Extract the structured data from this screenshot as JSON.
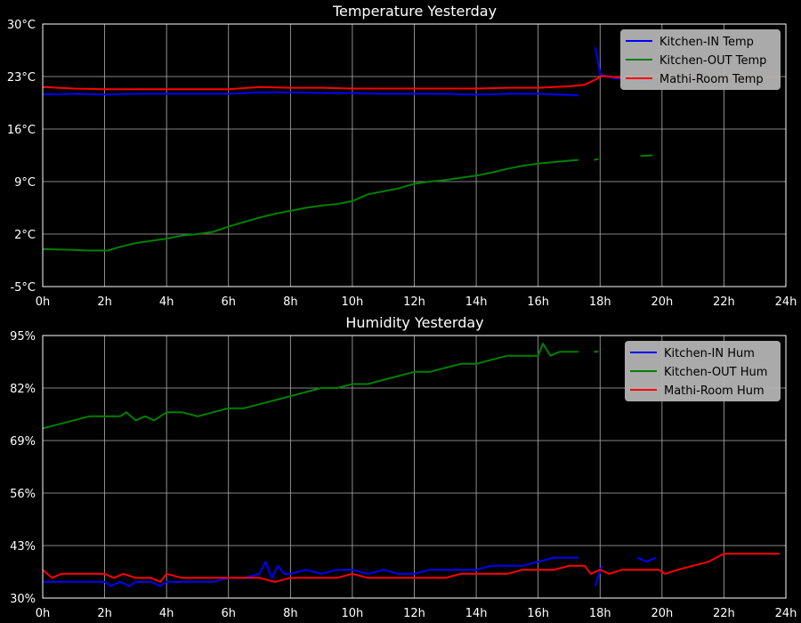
{
  "chart_data": [
    {
      "type": "line",
      "title": "Temperature Yesterday",
      "xlabel": "",
      "ylabel": "",
      "xlim": [
        0,
        24
      ],
      "ylim": [
        -5,
        30
      ],
      "x_ticks": [
        "0h",
        "2h",
        "4h",
        "6h",
        "8h",
        "10h",
        "12h",
        "14h",
        "16h",
        "18h",
        "20h",
        "22h",
        "24h"
      ],
      "y_ticks": [
        "-5°C",
        "2°C",
        "9°C",
        "16°C",
        "23°C",
        "30°C"
      ],
      "grid": true,
      "legend_position": "top-right",
      "series": [
        {
          "name": "Kitchen-IN Temp",
          "color": "#0000ff",
          "segments": [
            [
              [
                0,
                20.6
              ],
              [
                1,
                20.7
              ],
              [
                2,
                20.6
              ],
              [
                3,
                20.7
              ],
              [
                4,
                20.7
              ],
              [
                5,
                20.7
              ],
              [
                6,
                20.7
              ],
              [
                7,
                20.9
              ],
              [
                8,
                20.9
              ],
              [
                9,
                20.8
              ],
              [
                10,
                20.8
              ],
              [
                11,
                20.7
              ],
              [
                12,
                20.7
              ],
              [
                13,
                20.7
              ],
              [
                14,
                20.6
              ],
              [
                15,
                20.7
              ],
              [
                16,
                20.7
              ],
              [
                17.3,
                20.5
              ]
            ],
            [
              [
                17.85,
                26.9
              ],
              [
                18.0,
                23.3
              ],
              [
                18.4,
                22.8
              ],
              [
                19.0,
                22.7
              ],
              [
                19.5,
                22.5
              ]
            ]
          ]
        },
        {
          "name": "Kitchen-OUT Temp",
          "color": "#008000",
          "segments": [
            [
              [
                0,
                0.0
              ],
              [
                1,
                -0.1
              ],
              [
                1.5,
                -0.2
              ],
              [
                2.1,
                -0.2
              ],
              [
                2.5,
                0.3
              ],
              [
                3,
                0.8
              ],
              [
                3.5,
                1.1
              ],
              [
                4,
                1.4
              ],
              [
                4.5,
                1.8
              ],
              [
                5,
                2.0
              ],
              [
                5.5,
                2.3
              ],
              [
                6,
                3.0
              ],
              [
                6.5,
                3.6
              ],
              [
                7,
                4.2
              ],
              [
                7.5,
                4.7
              ],
              [
                8,
                5.1
              ],
              [
                8.5,
                5.5
              ],
              [
                9,
                5.8
              ],
              [
                9.5,
                6.0
              ],
              [
                10,
                6.4
              ],
              [
                10.5,
                7.3
              ],
              [
                11,
                7.7
              ],
              [
                11.5,
                8.1
              ],
              [
                12,
                8.7
              ],
              [
                12.5,
                9.0
              ],
              [
                13,
                9.2
              ],
              [
                13.5,
                9.5
              ],
              [
                14,
                9.8
              ],
              [
                14.5,
                10.2
              ],
              [
                15,
                10.7
              ],
              [
                15.5,
                11.1
              ],
              [
                16,
                11.4
              ],
              [
                16.5,
                11.6
              ],
              [
                17.3,
                11.9
              ]
            ],
            [
              [
                17.8,
                11.9
              ],
              [
                17.95,
                12.0
              ]
            ],
            [
              [
                19.3,
                12.4
              ],
              [
                19.7,
                12.5
              ]
            ]
          ]
        },
        {
          "name": "Mathi-Room Temp",
          "color": "#ff0000",
          "segments": [
            [
              [
                0,
                21.6
              ],
              [
                1,
                21.4
              ],
              [
                2,
                21.3
              ],
              [
                3,
                21.3
              ],
              [
                4,
                21.3
              ],
              [
                5,
                21.3
              ],
              [
                6,
                21.3
              ],
              [
                7,
                21.6
              ],
              [
                8,
                21.5
              ],
              [
                9,
                21.5
              ],
              [
                10,
                21.4
              ],
              [
                11,
                21.4
              ],
              [
                12,
                21.4
              ],
              [
                13,
                21.4
              ],
              [
                14,
                21.4
              ],
              [
                15,
                21.5
              ],
              [
                16,
                21.5
              ],
              [
                17,
                21.7
              ],
              [
                17.5,
                21.9
              ],
              [
                17.8,
                22.5
              ],
              [
                18.1,
                23.1
              ],
              [
                18.5,
                22.9
              ],
              [
                19,
                22.8
              ],
              [
                19.5,
                23.0
              ],
              [
                20,
                23.2
              ],
              [
                20.5,
                23.1
              ],
              [
                21,
                23.0
              ],
              [
                22,
                22.9
              ],
              [
                23,
                22.9
              ],
              [
                23.8,
                22.9
              ]
            ]
          ]
        }
      ]
    },
    {
      "type": "line",
      "title": "Humidity Yesterday",
      "xlabel": "",
      "ylabel": "",
      "xlim": [
        0,
        24
      ],
      "ylim": [
        30,
        95
      ],
      "x_ticks": [
        "0h",
        "2h",
        "4h",
        "6h",
        "8h",
        "10h",
        "12h",
        "14h",
        "16h",
        "18h",
        "20h",
        "22h",
        "24h"
      ],
      "y_ticks": [
        "30%",
        "43%",
        "56%",
        "69%",
        "82%",
        "95%"
      ],
      "grid": true,
      "legend_position": "top-right",
      "series": [
        {
          "name": "Kitchen-IN Hum",
          "color": "#0000ff",
          "segments": [
            [
              [
                0,
                34
              ],
              [
                1,
                34
              ],
              [
                2,
                34
              ],
              [
                2.2,
                33
              ],
              [
                2.5,
                34
              ],
              [
                2.8,
                33
              ],
              [
                3,
                34
              ],
              [
                3.5,
                34
              ],
              [
                3.8,
                33
              ],
              [
                4,
                34
              ],
              [
                4.5,
                34
              ],
              [
                5,
                34
              ],
              [
                5.5,
                34
              ],
              [
                6,
                35
              ],
              [
                6.5,
                35
              ],
              [
                7,
                36
              ],
              [
                7.2,
                39
              ],
              [
                7.4,
                35
              ],
              [
                7.6,
                38
              ],
              [
                7.8,
                36
              ],
              [
                8,
                36
              ],
              [
                8.5,
                37
              ],
              [
                9,
                36
              ],
              [
                9.5,
                37
              ],
              [
                10,
                37
              ],
              [
                10.5,
                36
              ],
              [
                11,
                37
              ],
              [
                11.5,
                36
              ],
              [
                12,
                36
              ],
              [
                12.5,
                37
              ],
              [
                13,
                37
              ],
              [
                13.5,
                37
              ],
              [
                14,
                37
              ],
              [
                14.5,
                38
              ],
              [
                15,
                38
              ],
              [
                15.5,
                38
              ],
              [
                16,
                39
              ],
              [
                16.5,
                40
              ],
              [
                17,
                40
              ],
              [
                17.3,
                40
              ]
            ],
            [
              [
                17.85,
                33
              ],
              [
                18.05,
                38
              ]
            ],
            [
              [
                19.2,
                40
              ],
              [
                19.5,
                39
              ],
              [
                19.8,
                40
              ]
            ]
          ]
        },
        {
          "name": "Kitchen-OUT Hum",
          "color": "#008000",
          "segments": [
            [
              [
                0,
                72
              ],
              [
                0.5,
                73
              ],
              [
                1,
                74
              ],
              [
                1.5,
                75
              ],
              [
                2,
                75
              ],
              [
                2.5,
                75
              ],
              [
                2.7,
                76
              ],
              [
                3,
                74
              ],
              [
                3.3,
                75
              ],
              [
                3.6,
                74
              ],
              [
                4,
                76
              ],
              [
                4.5,
                76
              ],
              [
                5,
                75
              ],
              [
                5.5,
                76
              ],
              [
                6,
                77
              ],
              [
                6.5,
                77
              ],
              [
                7,
                78
              ],
              [
                7.5,
                79
              ],
              [
                8,
                80
              ],
              [
                8.5,
                81
              ],
              [
                9,
                82
              ],
              [
                9.5,
                82
              ],
              [
                10,
                83
              ],
              [
                10.5,
                83
              ],
              [
                11,
                84
              ],
              [
                11.5,
                85
              ],
              [
                12,
                86
              ],
              [
                12.5,
                86
              ],
              [
                13,
                87
              ],
              [
                13.5,
                88
              ],
              [
                14,
                88
              ],
              [
                14.5,
                89
              ],
              [
                15,
                90
              ],
              [
                15.5,
                90
              ],
              [
                16,
                90
              ],
              [
                16.15,
                93
              ],
              [
                16.4,
                90
              ],
              [
                16.7,
                91
              ],
              [
                17,
                91
              ],
              [
                17.3,
                91
              ]
            ],
            [
              [
                17.8,
                91
              ],
              [
                17.95,
                91
              ]
            ]
          ]
        },
        {
          "name": "Mathi-Room Hum",
          "color": "#ff0000",
          "segments": [
            [
              [
                0,
                37
              ],
              [
                0.3,
                35
              ],
              [
                0.6,
                36
              ],
              [
                1,
                36
              ],
              [
                1.5,
                36
              ],
              [
                2,
                36
              ],
              [
                2.3,
                35
              ],
              [
                2.6,
                36
              ],
              [
                3,
                35
              ],
              [
                3.5,
                35
              ],
              [
                3.8,
                34
              ],
              [
                4,
                36
              ],
              [
                4.5,
                35
              ],
              [
                5,
                35
              ],
              [
                5.5,
                35
              ],
              [
                6,
                35
              ],
              [
                6.5,
                35
              ],
              [
                7,
                35
              ],
              [
                7.5,
                34
              ],
              [
                8,
                35
              ],
              [
                8.5,
                35
              ],
              [
                9,
                35
              ],
              [
                9.5,
                35
              ],
              [
                10,
                36
              ],
              [
                10.5,
                35
              ],
              [
                11,
                35
              ],
              [
                11.5,
                35
              ],
              [
                12,
                35
              ],
              [
                12.5,
                35
              ],
              [
                13,
                35
              ],
              [
                13.5,
                36
              ],
              [
                14,
                36
              ],
              [
                14.5,
                36
              ],
              [
                15,
                36
              ],
              [
                15.5,
                37
              ],
              [
                16,
                37
              ],
              [
                16.5,
                37
              ],
              [
                17,
                38
              ],
              [
                17.5,
                38
              ],
              [
                17.7,
                36
              ],
              [
                18,
                37
              ],
              [
                18.3,
                36
              ],
              [
                18.7,
                37
              ],
              [
                19,
                37
              ],
              [
                19.5,
                37
              ],
              [
                19.9,
                37
              ],
              [
                20.1,
                36
              ],
              [
                20.5,
                37
              ],
              [
                21,
                38
              ],
              [
                21.5,
                39
              ],
              [
                22,
                41
              ],
              [
                23,
                41
              ],
              [
                23.8,
                41
              ]
            ]
          ]
        }
      ]
    }
  ]
}
